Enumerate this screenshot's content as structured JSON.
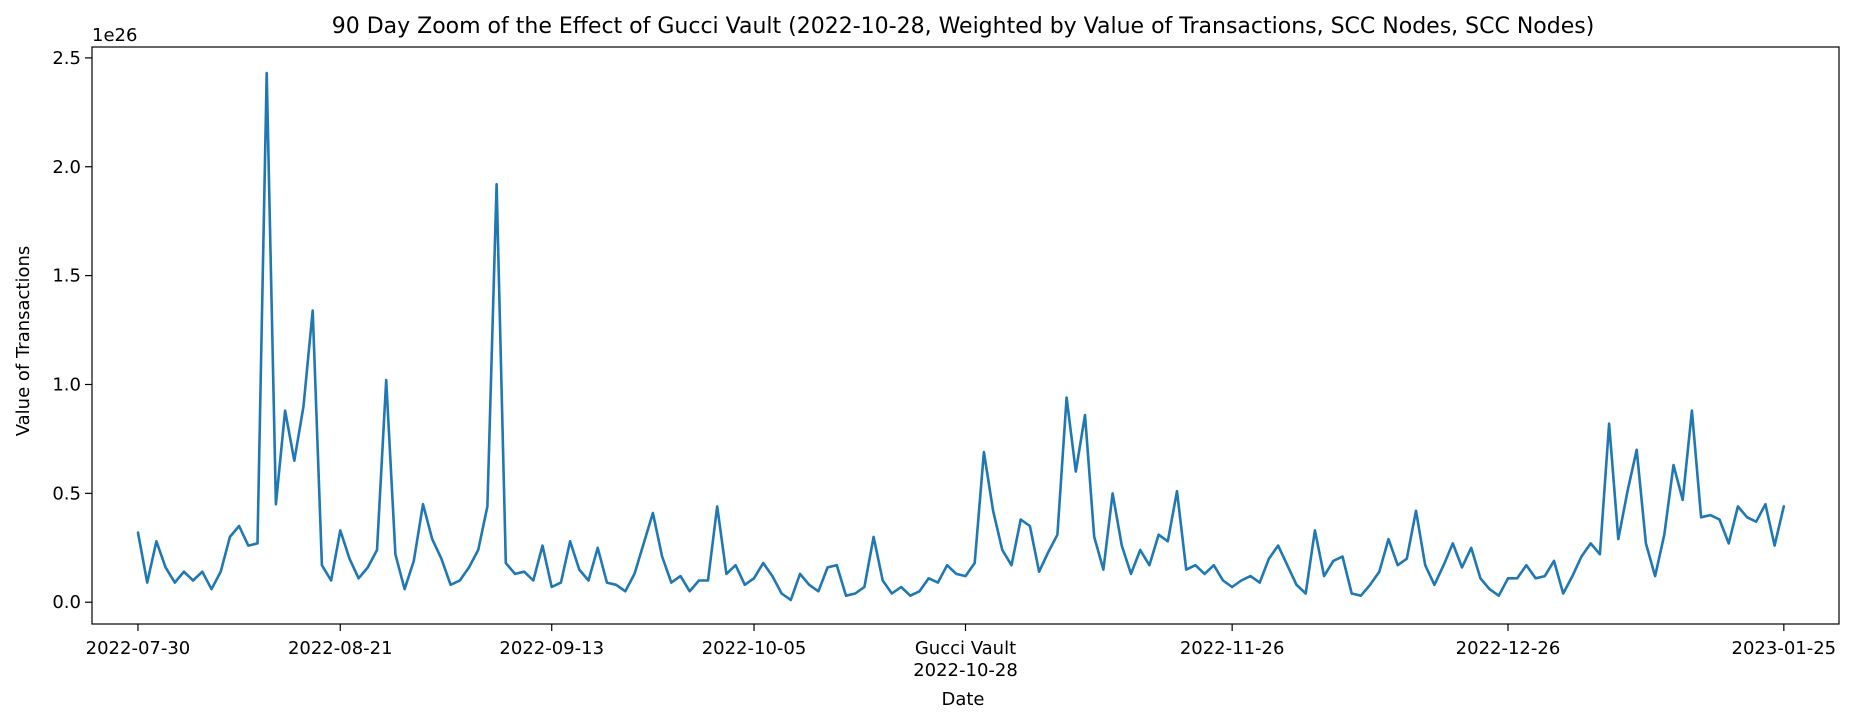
{
  "chart_data": {
    "type": "line",
    "title": "90 Day Zoom of the Effect of Gucci Vault (2022-10-28, Weighted by Value of Transactions, SCC Nodes, SCC Nodes)",
    "xlabel": "Date",
    "ylabel": "Value of Transactions",
    "y_multiplier_label": "1e26",
    "x_start": "2022-07-30",
    "x_end": "2023-01-25",
    "xlim": [
      "2022-07-25",
      "2023-01-31"
    ],
    "ylim": [
      -0.1,
      2.55
    ],
    "y_ticks": [
      0.0,
      0.5,
      1.0,
      1.5,
      2.0,
      2.5
    ],
    "y_tick_labels": [
      "0.0",
      "0.5",
      "1.0",
      "1.5",
      "2.0",
      "2.5"
    ],
    "x_ticks": [
      {
        "date": "2022-07-30",
        "label": "2022-07-30"
      },
      {
        "date": "2022-08-21",
        "label": "2022-08-21"
      },
      {
        "date": "2022-09-13",
        "label": "2022-09-13"
      },
      {
        "date": "2022-10-05",
        "label": "2022-10-05"
      },
      {
        "date": "2022-10-28",
        "label": "Gucci Vault",
        "label2": "2022-10-28"
      },
      {
        "date": "2022-11-26",
        "label": "2022-11-26"
      },
      {
        "date": "2022-12-26",
        "label": "2022-12-26"
      },
      {
        "date": "2023-01-25",
        "label": "2023-01-25"
      }
    ],
    "legend": "none",
    "grid": false,
    "series": [
      {
        "color": "#1f77b4",
        "values": [
          0.32,
          0.09,
          0.28,
          0.16,
          0.09,
          0.14,
          0.1,
          0.14,
          0.06,
          0.14,
          0.3,
          0.35,
          0.26,
          0.27,
          2.43,
          0.45,
          0.88,
          0.65,
          0.9,
          1.34,
          0.17,
          0.1,
          0.33,
          0.2,
          0.11,
          0.16,
          0.24,
          1.02,
          0.22,
          0.06,
          0.19,
          0.45,
          0.29,
          0.2,
          0.08,
          0.1,
          0.16,
          0.24,
          0.44,
          1.92,
          0.18,
          0.13,
          0.14,
          0.1,
          0.26,
          0.07,
          0.09,
          0.28,
          0.15,
          0.1,
          0.25,
          0.09,
          0.08,
          0.05,
          0.13,
          0.27,
          0.41,
          0.21,
          0.09,
          0.12,
          0.05,
          0.1,
          0.1,
          0.44,
          0.13,
          0.17,
          0.08,
          0.11,
          0.18,
          0.12,
          0.04,
          0.01,
          0.13,
          0.08,
          0.05,
          0.16,
          0.17,
          0.03,
          0.04,
          0.07,
          0.3,
          0.1,
          0.04,
          0.07,
          0.03,
          0.05,
          0.11,
          0.09,
          0.17,
          0.13,
          0.12,
          0.18,
          0.69,
          0.42,
          0.24,
          0.17,
          0.38,
          0.35,
          0.14,
          0.23,
          0.31,
          0.94,
          0.6,
          0.86,
          0.3,
          0.15,
          0.5,
          0.26,
          0.13,
          0.24,
          0.17,
          0.31,
          0.28,
          0.51,
          0.15,
          0.17,
          0.13,
          0.17,
          0.1,
          0.07,
          0.1,
          0.12,
          0.09,
          0.2,
          0.26,
          0.17,
          0.08,
          0.04,
          0.33,
          0.12,
          0.19,
          0.21,
          0.04,
          0.03,
          0.08,
          0.14,
          0.29,
          0.17,
          0.2,
          0.42,
          0.17,
          0.08,
          0.17,
          0.27,
          0.16,
          0.25,
          0.11,
          0.06,
          0.03,
          0.11,
          0.11,
          0.17,
          0.11,
          0.12,
          0.19,
          0.04,
          0.12,
          0.21,
          0.27,
          0.22,
          0.82,
          0.29,
          0.51,
          0.7,
          0.27,
          0.12,
          0.31,
          0.63,
          0.47,
          0.88,
          0.39,
          0.4,
          0.38,
          0.27,
          0.44,
          0.39,
          0.37,
          0.45,
          0.26,
          0.44
        ]
      }
    ]
  }
}
